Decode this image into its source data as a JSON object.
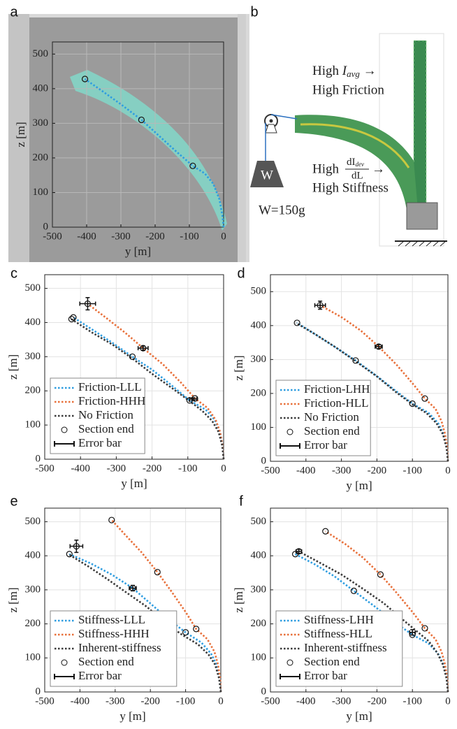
{
  "chart_data": [
    {
      "type": "line",
      "panel_label": "a",
      "xlabel": "y [m]",
      "ylabel": "z [m]",
      "xlim": [
        -500,
        0
      ],
      "ylim": [
        0,
        535
      ],
      "xticks": [
        -500,
        -400,
        -300,
        -200,
        -100,
        0
      ],
      "yticks": [
        0,
        100,
        200,
        300,
        400,
        500
      ],
      "grid": true,
      "series": [
        {
          "type": "line",
          "color": "#2e9de0",
          "linestyle": "dotted",
          "x": [
            0,
            -3,
            -12,
            -30,
            -55,
            -90,
            -140,
            -190,
            -240,
            -300,
            -350,
            -405
          ],
          "values": [
            0,
            30,
            80,
            125,
            155,
            177,
            220,
            265,
            310,
            355,
            390,
            428
          ]
        },
        {
          "type": "scatter",
          "color": "#111111",
          "x": [
            -405,
            -240,
            -90
          ],
          "values": [
            428,
            310,
            177
          ]
        }
      ]
    },
    {
      "type": "line",
      "panel_label": "c",
      "xlabel": "y [m]",
      "ylabel": "z [m]",
      "xlim": [
        -500,
        0
      ],
      "ylim": [
        0,
        540
      ],
      "xticks": [
        -500,
        -400,
        -300,
        -200,
        -100,
        0
      ],
      "yticks": [
        0,
        100,
        200,
        300,
        400,
        500
      ],
      "grid": true,
      "legend": "lower left",
      "series": [
        {
          "type": "line",
          "name": "Friction-LLL",
          "color": "#2e9de0",
          "linestyle": "dotted",
          "x": [
            0,
            -3,
            -10,
            -25,
            -50,
            -95,
            -150,
            -200,
            -255,
            -310,
            -365,
            -420
          ],
          "values": [
            0,
            40,
            80,
            115,
            145,
            172,
            220,
            262,
            300,
            340,
            378,
            415
          ]
        },
        {
          "type": "line",
          "name": "Friction-HHH",
          "color": "#e8703a",
          "linestyle": "dotted",
          "x": [
            0,
            -3,
            -10,
            -22,
            -45,
            -80,
            -120,
            -170,
            -225,
            -275,
            -330,
            -380
          ],
          "values": [
            0,
            40,
            80,
            115,
            150,
            178,
            225,
            278,
            325,
            370,
            415,
            455
          ]
        },
        {
          "type": "line",
          "name": "No Friction",
          "color": "#3a3a3a",
          "linestyle": "dotted",
          "x": [
            0,
            -4,
            -14,
            -32,
            -60,
            -95,
            -140,
            -200,
            -255,
            -310,
            -370,
            -425
          ],
          "values": [
            0,
            40,
            80,
            112,
            142,
            170,
            205,
            250,
            295,
            335,
            372,
            410
          ]
        },
        {
          "type": "scatter",
          "name": "Section end",
          "color": "#111111",
          "x": [
            -420,
            -255,
            -95,
            -380,
            -225,
            -80,
            -425
          ],
          "values": [
            415,
            300,
            172,
            455,
            325,
            178,
            410
          ]
        },
        {
          "type": "errorbar",
          "name": "Error bar",
          "color": "#111111",
          "x": [
            -380,
            -225,
            -85
          ],
          "values": [
            455,
            325,
            176
          ],
          "xerr": [
            22,
            14,
            10
          ],
          "yerr": [
            18,
            6,
            4
          ]
        }
      ]
    },
    {
      "type": "line",
      "panel_label": "d",
      "xlabel": "y [m]",
      "ylabel": "z [m]",
      "xlim": [
        -500,
        0
      ],
      "ylim": [
        0,
        550
      ],
      "xticks": [
        -500,
        -400,
        -300,
        -200,
        -100,
        0
      ],
      "yticks": [
        0,
        100,
        200,
        300,
        400,
        500
      ],
      "grid": true,
      "legend": "lower left",
      "series": [
        {
          "type": "line",
          "name": "Friction-LHH",
          "color": "#2e9de0",
          "linestyle": "dotted",
          "x": [
            0,
            -3,
            -12,
            -28,
            -55,
            -100,
            -150,
            -205,
            -260,
            -315,
            -370,
            -425
          ],
          "values": [
            0,
            40,
            80,
            113,
            143,
            170,
            210,
            255,
            297,
            335,
            372,
            408
          ]
        },
        {
          "type": "line",
          "name": "Friction-HLL",
          "color": "#e8703a",
          "linestyle": "dotted",
          "x": [
            0,
            -2,
            -8,
            -18,
            -35,
            -65,
            -100,
            -145,
            -195,
            -245,
            -300,
            -360
          ],
          "values": [
            0,
            40,
            80,
            118,
            155,
            185,
            230,
            285,
            338,
            385,
            425,
            460
          ]
        },
        {
          "type": "line",
          "name": "No Friction",
          "color": "#3a3a3a",
          "linestyle": "dotted",
          "x": [
            0,
            -4,
            -14,
            -32,
            -60,
            -100,
            -145,
            -200,
            -260,
            -315,
            -370,
            -428
          ],
          "values": [
            0,
            40,
            80,
            112,
            142,
            168,
            203,
            250,
            295,
            335,
            372,
            408
          ]
        },
        {
          "type": "scatter",
          "name": "Section end",
          "color": "#111111",
          "x": [
            -425,
            -260,
            -100,
            -360,
            -195,
            -65
          ],
          "values": [
            408,
            297,
            170,
            460,
            338,
            185
          ]
        },
        {
          "type": "errorbar",
          "name": "Error bar",
          "color": "#111111",
          "x": [
            -360,
            -195
          ],
          "values": [
            460,
            338
          ],
          "xerr": [
            15,
            10
          ],
          "yerr": [
            12,
            6
          ]
        }
      ]
    },
    {
      "type": "line",
      "panel_label": "e",
      "xlabel": "y [m]",
      "ylabel": "z [m]",
      "xlim": [
        -500,
        0
      ],
      "ylim": [
        0,
        540
      ],
      "xticks": [
        -500,
        -400,
        -300,
        -200,
        -100,
        0
      ],
      "yticks": [
        0,
        100,
        200,
        300,
        400,
        500
      ],
      "grid": true,
      "legend": "lower left",
      "series": [
        {
          "type": "line",
          "name": "Stiffness-LLL",
          "color": "#2e9de0",
          "linestyle": "dotted",
          "x": [
            0,
            -3,
            -12,
            -28,
            -55,
            -100,
            -150,
            -200,
            -250,
            -310,
            -370,
            -430
          ],
          "values": [
            0,
            40,
            80,
            113,
            145,
            175,
            215,
            260,
            305,
            345,
            378,
            405
          ]
        },
        {
          "type": "line",
          "name": "Stiffness-HHH",
          "color": "#e8703a",
          "linestyle": "dotted",
          "x": [
            0,
            -2,
            -8,
            -18,
            -38,
            -70,
            -100,
            -140,
            -180,
            -225,
            -270,
            -310
          ],
          "values": [
            0,
            40,
            80,
            118,
            155,
            185,
            235,
            295,
            352,
            410,
            460,
            505
          ]
        },
        {
          "type": "line",
          "name": "Inherent-stiffness",
          "color": "#3a3a3a",
          "linestyle": "dotted",
          "x": [
            0,
            -5,
            -16,
            -35,
            -65,
            -110,
            -160,
            -210,
            -265,
            -320,
            -375,
            -430
          ],
          "values": [
            0,
            40,
            80,
            110,
            140,
            168,
            205,
            250,
            290,
            330,
            368,
            403
          ]
        },
        {
          "type": "scatter",
          "name": "Section end",
          "color": "#111111",
          "x": [
            -430,
            -250,
            -100,
            -310,
            -180,
            -70,
            -410
          ],
          "values": [
            405,
            305,
            175,
            505,
            352,
            185,
            428
          ]
        },
        {
          "type": "errorbar",
          "name": "Error bar",
          "color": "#111111",
          "x": [
            -410,
            -250
          ],
          "values": [
            428,
            305
          ],
          "xerr": [
            18,
            10
          ],
          "yerr": [
            18,
            8
          ]
        }
      ]
    },
    {
      "type": "line",
      "panel_label": "f",
      "xlabel": "y [m]",
      "ylabel": "z [m]",
      "xlim": [
        -500,
        0
      ],
      "ylim": [
        0,
        540
      ],
      "xticks": [
        -500,
        -400,
        -300,
        -200,
        -100,
        0
      ],
      "yticks": [
        0,
        100,
        200,
        300,
        400,
        500
      ],
      "grid": true,
      "legend": "lower left",
      "series": [
        {
          "type": "line",
          "name": "Stiffness-LHH",
          "color": "#2e9de0",
          "linestyle": "dotted",
          "x": [
            0,
            -3,
            -12,
            -28,
            -55,
            -100,
            -150,
            -205,
            -265,
            -320,
            -375,
            -430
          ],
          "values": [
            0,
            40,
            80,
            113,
            143,
            168,
            205,
            250,
            297,
            340,
            375,
            405
          ]
        },
        {
          "type": "line",
          "name": "Stiffness-HLL",
          "color": "#e8703a",
          "linestyle": "dotted",
          "x": [
            0,
            -2,
            -8,
            -18,
            -35,
            -65,
            -100,
            -145,
            -190,
            -240,
            -290,
            -345
          ],
          "values": [
            0,
            40,
            80,
            118,
            155,
            187,
            235,
            292,
            345,
            395,
            435,
            472
          ]
        },
        {
          "type": "line",
          "name": "Inherent-stiffness",
          "color": "#3a3a3a",
          "linestyle": "dotted",
          "x": [
            0,
            -4,
            -14,
            -30,
            -55,
            -90,
            -130,
            -180,
            -235,
            -300,
            -365,
            -420
          ],
          "values": [
            0,
            40,
            80,
            115,
            150,
            180,
            215,
            260,
            300,
            345,
            382,
            413
          ]
        },
        {
          "type": "scatter",
          "name": "Section end",
          "color": "#111111",
          "x": [
            -430,
            -265,
            -100,
            -345,
            -190,
            -65,
            -420
          ],
          "values": [
            405,
            297,
            168,
            472,
            345,
            187,
            413
          ]
        },
        {
          "type": "errorbar",
          "name": "Error bar",
          "color": "#111111",
          "x": [
            -420,
            -100
          ],
          "values": [
            413,
            175
          ],
          "xerr": [
            8,
            8
          ],
          "yerr": [
            6,
            8
          ]
        }
      ]
    }
  ],
  "diagram": {
    "panel_label": "b",
    "friction": {
      "prefix": "High",
      "symbol": "I",
      "subscript": "avg",
      "arrow": "→",
      "result": "High Friction"
    },
    "stiffness": {
      "prefix": "High",
      "numerator": "dI",
      "numerator_subscript": "dev",
      "denominator": "dL",
      "arrow": "→",
      "result": "High Stiffness"
    },
    "weight_symbol": "W",
    "weight_label": "W=150g"
  }
}
